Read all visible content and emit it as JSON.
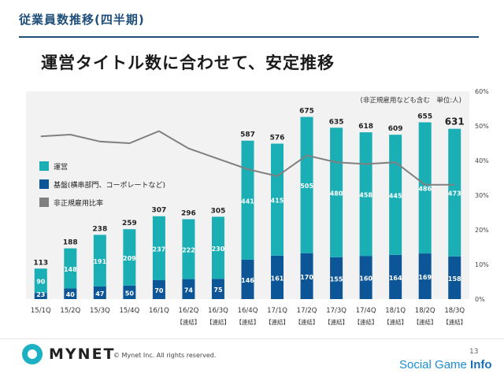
{
  "header": {
    "section_title": "従業員数推移(四半期)",
    "main_title": "運営タイトル数に合わせて、安定推移"
  },
  "footer": {
    "logo_text": "MYNET",
    "copyright": "© Mynet Inc. All rights reserved.",
    "page_number": "13",
    "watermark_a": "Social Game ",
    "watermark_b": "Info"
  },
  "colors": {
    "unei": "#1aaeb5",
    "kiban": "#0c5596",
    "line": "#808080",
    "plot_bg": "#f2f2f2"
  },
  "chart_data": {
    "type": "bar",
    "stacked": true,
    "note": "(非正規雇用なども含む　単位:人)",
    "categories": [
      "15/1Q",
      "15/2Q",
      "15/3Q",
      "15/4Q",
      "16/1Q",
      "16/2Q",
      "16/3Q",
      "16/4Q",
      "17/1Q",
      "17/2Q",
      "17/3Q",
      "17/4Q",
      "18/1Q",
      "18/2Q",
      "18/3Q"
    ],
    "category_sublabels": [
      "",
      "",
      "",
      "",
      "",
      "【連結】",
      "【連結】",
      "【連結】",
      "【連結】",
      "【連結】",
      "【連結】",
      "【連結】",
      "【連結】",
      "【連結】",
      "【連結】"
    ],
    "series": [
      {
        "name": "基盤(横串部門、コーポレートなど)",
        "values": [
          23,
          40,
          47,
          50,
          70,
          74,
          75,
          146,
          161,
          170,
          155,
          160,
          164,
          169,
          158
        ]
      },
      {
        "name": "運営",
        "values": [
          90,
          148,
          191,
          209,
          237,
          222,
          230,
          441,
          415,
          505,
          480,
          458,
          445,
          486,
          473
        ]
      }
    ],
    "totals": [
      113,
      188,
      238,
      259,
      307,
      296,
      305,
      587,
      576,
      675,
      635,
      618,
      609,
      655,
      631
    ],
    "line_series": {
      "name": "非正規雇用比率",
      "axis": "right",
      "values": [
        47,
        47.5,
        45.5,
        45,
        48.5,
        43.5,
        40.5,
        37.5,
        35.5,
        41.5,
        39.5,
        39,
        39.5,
        33,
        33
      ]
    },
    "legend": [
      "運営",
      "基盤(横串部門、コーポレートなど)",
      "非正規雇用比率"
    ],
    "legend_position": "left",
    "y_left_range": [
      0,
      770
    ],
    "y_right_range": [
      0,
      60
    ],
    "y_right_ticks": [
      "0%",
      "10%",
      "20%",
      "30%",
      "40%",
      "50%",
      "60%"
    ]
  }
}
